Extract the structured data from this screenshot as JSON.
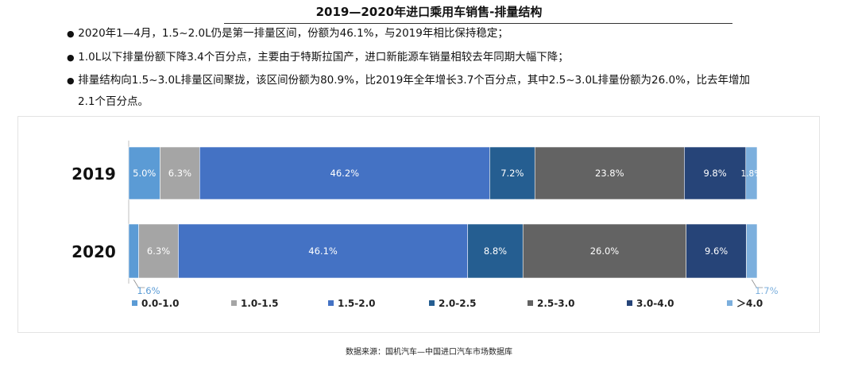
{
  "title": "2019—2020年进口乘用车销售-排量结构",
  "bullets": [
    "2020年1—4月，1.5~2.0L仍是第一排量区间，份额为46.1%，与2019年相比保持稳定；",
    "1.0L以下排量份额下降3.4个百分点，主要由于特斯拉国产，进口新能源车销量相较去年同期大幅下降；",
    "排量结构向1.5~3.0L排量区间聚拢，该区间份额为80.9%，比2019年全年增长3.7个百分点，其中2.5~3.0L排量份额为26.0%，比去年增加"
  ],
  "bullet3_cont": "2.1个百分点。",
  "source": "数据来源：国机汽车—中国进口汽车市场数据库",
  "chart_data": {
    "type": "bar",
    "orientation": "horizontal",
    "stacked": true,
    "normalized": true,
    "categories": [
      "2019",
      "2020"
    ],
    "series": [
      {
        "name": "0.0-1.0",
        "color": "#5B9BD5",
        "values": [
          5.0,
          1.6
        ],
        "labels": [
          "5.0%",
          "1.6%"
        ]
      },
      {
        "name": "1.0-1.5",
        "color": "#A5A5A5",
        "values": [
          6.3,
          6.3
        ],
        "labels": [
          "6.3%",
          "6.3%"
        ]
      },
      {
        "name": "1.5-2.0",
        "color": "#4472C4",
        "values": [
          46.2,
          46.1
        ],
        "labels": [
          "46.2%",
          "46.1%"
        ]
      },
      {
        "name": "2.0-2.5",
        "color": "#255E91",
        "values": [
          7.2,
          8.8
        ],
        "labels": [
          "7.2%",
          "8.8%"
        ]
      },
      {
        "name": "2.5-3.0",
        "color": "#636363",
        "values": [
          23.8,
          26.0
        ],
        "labels": [
          "23.8%",
          "26.0%"
        ]
      },
      {
        "name": "3.0-4.0",
        "color": "#264478",
        "values": [
          9.8,
          9.6
        ],
        "labels": [
          "9.8%",
          "9.6%"
        ]
      },
      {
        "name": "＞4.0",
        "color": "#7CAFDD",
        "values": [
          1.8,
          1.7
        ],
        "labels": [
          "1.8%",
          "1.7%"
        ]
      }
    ],
    "legend_position": "bottom",
    "grid": false
  }
}
